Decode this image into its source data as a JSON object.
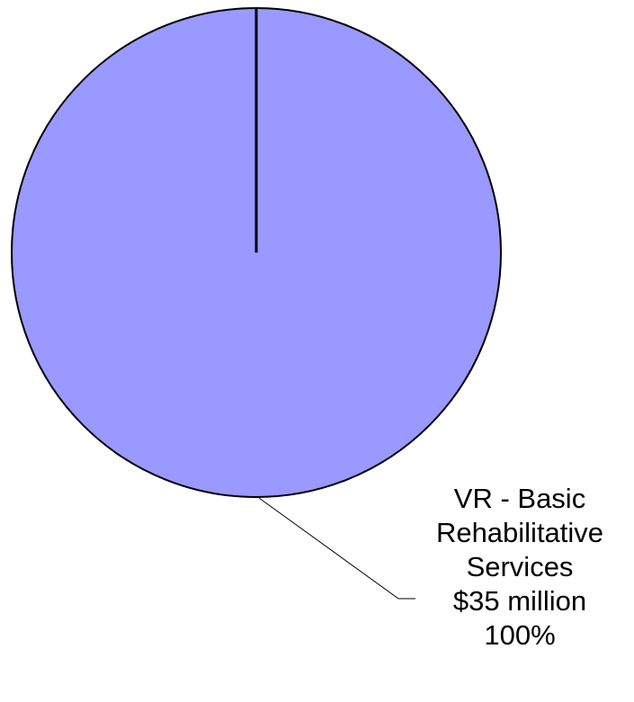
{
  "chart_data": {
    "type": "pie",
    "title": "",
    "slices": [
      {
        "label_lines": [
          "VR - Basic",
          "Rehabilitative",
          "Services"
        ],
        "value_text": "$35 million",
        "value": 35,
        "percent_text": "100%",
        "percent": 100,
        "color": "#9999ff"
      }
    ],
    "legend": "none",
    "label_style": "outside-with-leader-line"
  }
}
